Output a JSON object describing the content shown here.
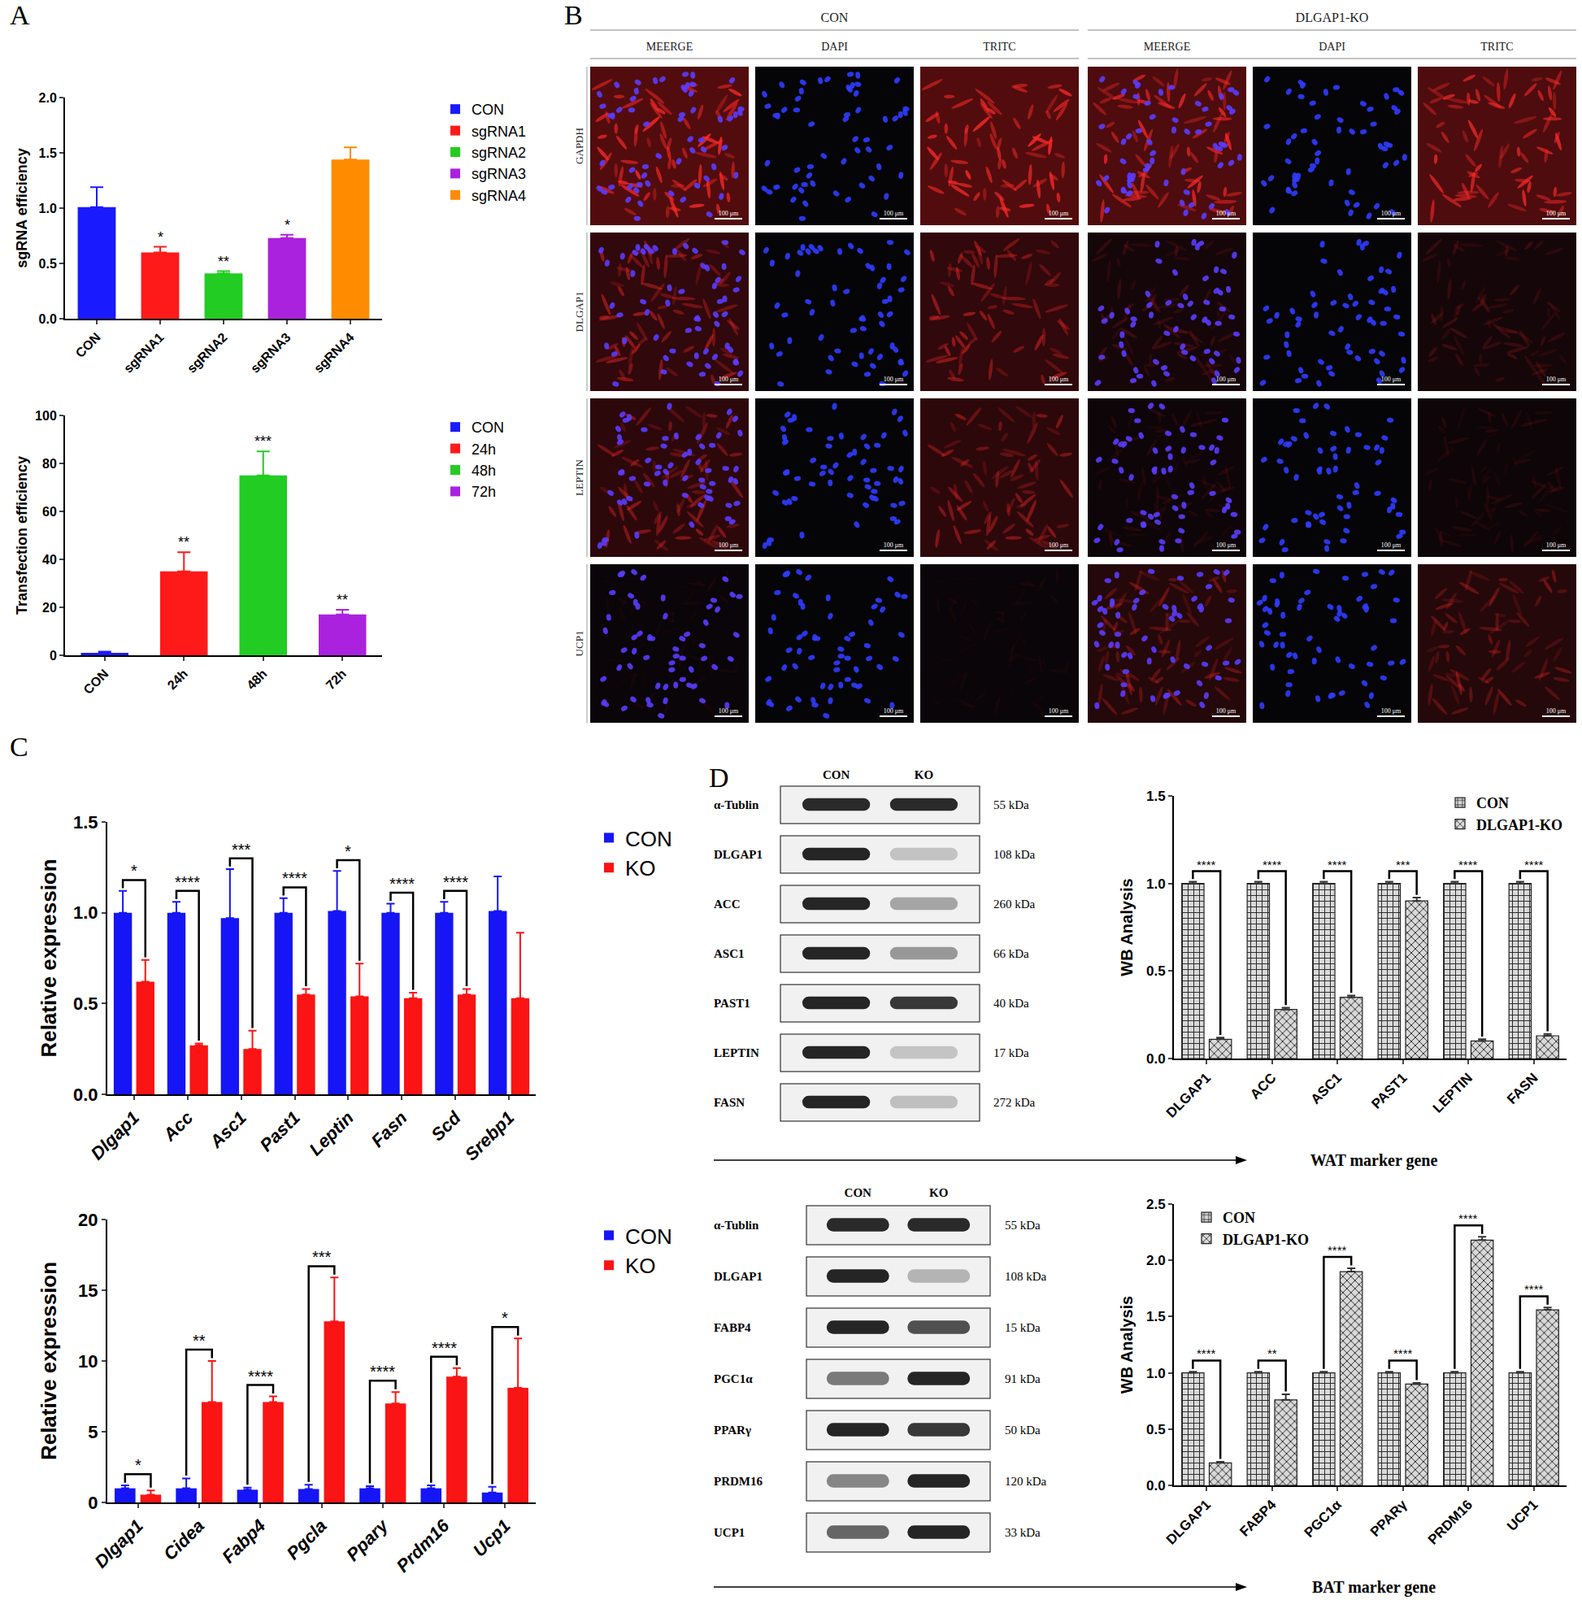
{
  "panel_labels": [
    "A",
    "B",
    "C",
    "D"
  ],
  "chart_data": [
    {
      "panel": "A",
      "type": "bar",
      "y_label": "sgRNA efficiency",
      "categories": [
        "CON",
        "sgRNA1",
        "sgRNA2",
        "sgRNA3",
        "sgRNA4"
      ],
      "colors": [
        "#1a1aff",
        "#ff1a1a",
        "#22cc22",
        "#aa22dd",
        "#ff8c00"
      ],
      "values": [
        1.01,
        0.6,
        0.41,
        0.73,
        1.44
      ],
      "errors": [
        0.18,
        0.05,
        0.02,
        0.03,
        0.11
      ],
      "significance": [
        null,
        "*",
        "**",
        "*",
        null
      ],
      "ylim": [
        0,
        2
      ],
      "yticks": [
        {
          "value": 0,
          "label": "0.0"
        },
        {
          "value": 0.5,
          "label": "0.5"
        },
        {
          "value": 1,
          "label": "1.0"
        },
        {
          "value": 1.5,
          "label": "1.5"
        },
        {
          "value": 2,
          "label": "2.0"
        }
      ],
      "legend": "right",
      "grid": false
    },
    {
      "panel": "A",
      "type": "bar",
      "y_label": "Transfection efficiency",
      "categories": [
        "CON",
        "24h",
        "48h",
        "72h"
      ],
      "colors": [
        "#1a1aff",
        "#ff1a1a",
        "#22cc22",
        "#aa22dd"
      ],
      "values": [
        1,
        35,
        75,
        17
      ],
      "errors": [
        0.5,
        8,
        10,
        2
      ],
      "significance": [
        null,
        "**",
        "***",
        "**"
      ],
      "ylim": [
        0,
        100
      ],
      "yticks": [
        0,
        20,
        40,
        60,
        80,
        100
      ],
      "legend": "right",
      "grid": false
    },
    {
      "panel": "C",
      "type": "bar",
      "y_label": "Relative expression",
      "categories": [
        "Dlgap1",
        "Acc",
        "Asc1",
        "Past1",
        "Leptin",
        "Fasn",
        "Scd",
        "Srebp1"
      ],
      "series": [
        {
          "name": "CON",
          "color": "#1515f5",
          "values": [
            1.0,
            1.0,
            0.97,
            1.0,
            1.01,
            1.0,
            1.0,
            1.01
          ],
          "errors": [
            0.12,
            0.06,
            0.27,
            0.08,
            0.22,
            0.05,
            0.06,
            0.19
          ]
        },
        {
          "name": "KO",
          "color": "#fa1414",
          "values": [
            0.62,
            0.27,
            0.25,
            0.55,
            0.54,
            0.53,
            0.55,
            0.53
          ],
          "errors": [
            0.12,
            0.01,
            0.1,
            0.03,
            0.18,
            0.03,
            0.03,
            0.36
          ]
        }
      ],
      "significance": [
        "*",
        "****",
        "***",
        "****",
        "*",
        "****",
        "****",
        null
      ],
      "ylim": [
        0,
        1.5
      ],
      "yticks": [
        {
          "value": 0,
          "label": "0.0"
        },
        {
          "value": 0.5,
          "label": "0.5"
        },
        {
          "value": 1,
          "label": "1.0"
        },
        {
          "value": 1.5,
          "label": "1.5"
        }
      ],
      "legend": "right",
      "grid": false
    },
    {
      "panel": "C",
      "type": "bar",
      "y_label": "Relative expression",
      "categories": [
        "Dlgap1",
        "Cidea",
        "Fabp4",
        "Pgcla",
        "Ppary",
        "Prdm16",
        "Ucp1"
      ],
      "series": [
        {
          "name": "CON",
          "color": "#1515f5",
          "values": [
            1.0,
            1.0,
            0.9,
            0.95,
            1.0,
            1.0,
            0.7
          ],
          "errors": [
            0.2,
            0.7,
            0.15,
            0.3,
            0.15,
            0.2,
            0.4
          ]
        },
        {
          "name": "KO",
          "color": "#fa1414",
          "values": [
            0.55,
            7.1,
            7.1,
            12.8,
            7.0,
            8.9,
            8.1
          ],
          "errors": [
            0.3,
            2.9,
            0.4,
            3.1,
            0.8,
            0.6,
            3.5
          ]
        }
      ],
      "significance": [
        "*",
        "**",
        "****",
        "***",
        "****",
        "****",
        "*"
      ],
      "ylim": [
        0,
        20
      ],
      "yticks": [
        0,
        5,
        10,
        15,
        20
      ],
      "legend": "right",
      "grid": false
    },
    {
      "panel": "D",
      "type": "bar",
      "y_label": "WB Analysis",
      "x_label": "WAT marker gene",
      "categories": [
        "DLGAP1",
        "ACC",
        "ASC1",
        "PAST1",
        "LEPTIN",
        "FASN"
      ],
      "series": [
        {
          "name": "CON",
          "color": "#d9d9d9",
          "marker": "+",
          "values": [
            1.0,
            1.0,
            1.0,
            1.0,
            1.0,
            1.0
          ],
          "errors": [
            0.01,
            0.01,
            0.01,
            0.01,
            0.01,
            0.01
          ]
        },
        {
          "name": "DLGAP1-KO",
          "color": "#d9d9d9",
          "marker": "x",
          "values": [
            0.11,
            0.28,
            0.35,
            0.9,
            0.1,
            0.13
          ],
          "errors": [
            0.01,
            0.01,
            0.01,
            0.02,
            0.01,
            0.01
          ]
        }
      ],
      "significance": [
        "****",
        "****",
        "****",
        "***",
        "****",
        "****"
      ],
      "ylim": [
        0,
        1.5
      ],
      "yticks": [
        {
          "value": 0,
          "label": "0.0"
        },
        {
          "value": 0.5,
          "label": "0.5"
        },
        {
          "value": 1,
          "label": "1.0"
        },
        {
          "value": 1.5,
          "label": "1.5"
        }
      ],
      "legend": "top right",
      "grid": false
    },
    {
      "panel": "D",
      "type": "bar",
      "y_label": "WB Analysis",
      "x_label": "BAT marker gene",
      "categories": [
        "DLGAP1",
        "FABP4",
        "PGC1α",
        "PPARγ",
        "PRDM16",
        "UCP1"
      ],
      "series": [
        {
          "name": "CON",
          "color": "#d9d9d9",
          "marker": "+",
          "values": [
            1.0,
            1.0,
            1.0,
            1.0,
            1.0,
            1.0
          ],
          "errors": [
            0.01,
            0.01,
            0.01,
            0.01,
            0.01,
            0.01
          ]
        },
        {
          "name": "DLGAP1-KO",
          "color": "#d9d9d9",
          "marker": "x",
          "values": [
            0.2,
            0.76,
            1.9,
            0.9,
            2.18,
            1.56
          ],
          "errors": [
            0.01,
            0.05,
            0.03,
            0.01,
            0.03,
            0.02
          ]
        }
      ],
      "significance": [
        "****",
        "**",
        "****",
        "****",
        "****",
        "****"
      ],
      "ylim": [
        0,
        2.5
      ],
      "yticks": [
        {
          "value": 0,
          "label": "0.0"
        },
        {
          "value": 0.5,
          "label": "0.5"
        },
        {
          "value": 1,
          "label": "1.0"
        },
        {
          "value": 1.5,
          "label": "1.5"
        },
        {
          "value": 2,
          "label": "2.0"
        },
        {
          "value": 2.5,
          "label": "2.5"
        }
      ],
      "legend": "top left",
      "grid": false
    }
  ],
  "image_panel": {
    "groups": [
      "CON",
      "DLGAP1-KO"
    ],
    "channels": [
      "MEERGE",
      "DAPI",
      "TRITC"
    ],
    "rows": [
      "GAPDH",
      "DLGAP1",
      "LEPTIN",
      "UCP1"
    ],
    "scale_bar": "100 μm"
  },
  "blots": [
    {
      "header": [
        "CON",
        "KO"
      ],
      "rows": [
        {
          "label": "α-Tublin",
          "size": "55 kDa"
        },
        {
          "label": "DLGAP1",
          "size": "108 kDa"
        },
        {
          "label": "ACC",
          "size": "260 kDa"
        },
        {
          "label": "ASC1",
          "size": "66 kDa"
        },
        {
          "label": "PAST1",
          "size": "40 kDa"
        },
        {
          "label": "LEPTIN",
          "size": "17 kDa"
        },
        {
          "label": "FASN",
          "size": "272 kDa"
        }
      ]
    },
    {
      "header": [
        "CON",
        "KO"
      ],
      "rows": [
        {
          "label": "α-Tublin",
          "size": "55 kDa"
        },
        {
          "label": "DLGAP1",
          "size": "108 kDa"
        },
        {
          "label": "FABP4",
          "size": "15 kDa"
        },
        {
          "label": "PGC1α",
          "size": "91 kDa"
        },
        {
          "label": "PPARγ",
          "size": "50 kDa"
        },
        {
          "label": "PRDM16",
          "size": "120 kDa"
        },
        {
          "label": "UCP1",
          "size": "33 kDa"
        }
      ]
    }
  ]
}
